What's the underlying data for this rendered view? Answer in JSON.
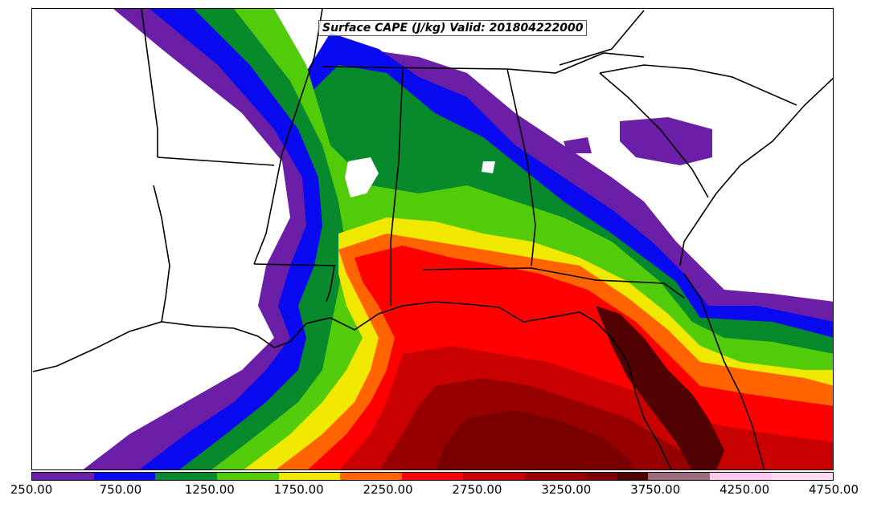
{
  "title": "Surface CAPE (J/kg) Valid: 201804222000",
  "colorbar": {
    "min": 250,
    "max": 4750,
    "step": 250,
    "colors": [
      "#6a1fa6",
      "#6a1fa6",
      "#0a0af0",
      "#0a0af0",
      "#088a2c",
      "#088a2c",
      "#52cc0a",
      "#52cc0a",
      "#f0e800",
      "#f0e800",
      "#ff6400",
      "#ff6400",
      "#ff0000",
      "#ff0000",
      "#c80000",
      "#c80000",
      "#960000",
      "#960000",
      "#7a0000",
      "#500000",
      "#9e6a80",
      "#9e6a80",
      "#ffc8f0",
      "#ffc8f0",
      "#ffdcf0",
      "#ffdcf0"
    ],
    "tick_labels": [
      "250.00",
      "750.00",
      "1250.00",
      "1750.00",
      "2250.00",
      "2750.00",
      "3250.00",
      "3750.00",
      "4250.00",
      "4750.00"
    ]
  },
  "map": {
    "region": "Southeastern United States and Gulf of Mexico",
    "field": "Surface CAPE",
    "units": "J/kg",
    "valid_time": "201804222000"
  }
}
